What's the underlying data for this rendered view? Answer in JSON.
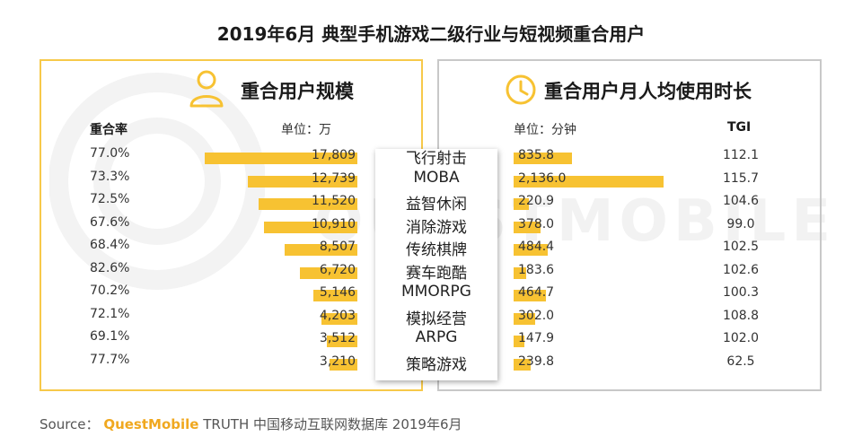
{
  "title": "2019年6月 典型手机游戏二级行业与短视频重合用户",
  "watermark": "QUESTMOBILE",
  "left_panel": {
    "title": "重合用户规模",
    "icon": "person-icon",
    "rate_header": "重合率",
    "unit": "单位：万"
  },
  "right_panel": {
    "title": "重合用户月人均使用时长",
    "icon": "clock-icon",
    "unit": "单位：分钟",
    "tgi_header": "TGI"
  },
  "source": {
    "prefix": "Source：",
    "brand": "QuestMobile",
    "suffix": "TRUTH 中国移动互联网数据库 2019年6月"
  },
  "colors": {
    "bar": "#f7c232",
    "left_border": "#f7c94a",
    "right_border": "#c8c8c8",
    "brand": "#f0a81f"
  },
  "chart_data": {
    "type": "bar",
    "categories": [
      "飞行射击",
      "MOBA",
      "益智休闲",
      "消除游戏",
      "传统棋牌",
      "赛车跑酷",
      "MMORPG",
      "模拟经营",
      "ARPG",
      "策略游戏"
    ],
    "overlap_rate": [
      "77.0%",
      "73.3%",
      "72.5%",
      "67.6%",
      "68.4%",
      "82.6%",
      "70.2%",
      "72.1%",
      "69.1%",
      "77.7%"
    ],
    "series": [
      {
        "values": [
          17809,
          12739,
          11520,
          10910,
          8507,
          6720,
          5146,
          4203,
          3512,
          3210
        ],
        "labels": [
          "17,809",
          "12,739",
          "11,520",
          "10,910",
          "8,507",
          "6,720",
          "5,146",
          "4,203",
          "3,512",
          "3,210"
        ]
      },
      {
        "values": [
          835.8,
          2136.0,
          220.9,
          378.0,
          484.4,
          183.6,
          464.7,
          302.0,
          147.9,
          239.8
        ],
        "labels": [
          "835.8",
          "2,136.0",
          "220.9",
          "378.0",
          "484.4",
          "183.6",
          "464.7",
          "302.0",
          "147.9",
          "239.8"
        ]
      }
    ],
    "tgi": [
      "112.1",
      "115.7",
      "104.6",
      "99.0",
      "102.5",
      "102.6",
      "100.3",
      "108.8",
      "102.0",
      "62.5"
    ]
  }
}
